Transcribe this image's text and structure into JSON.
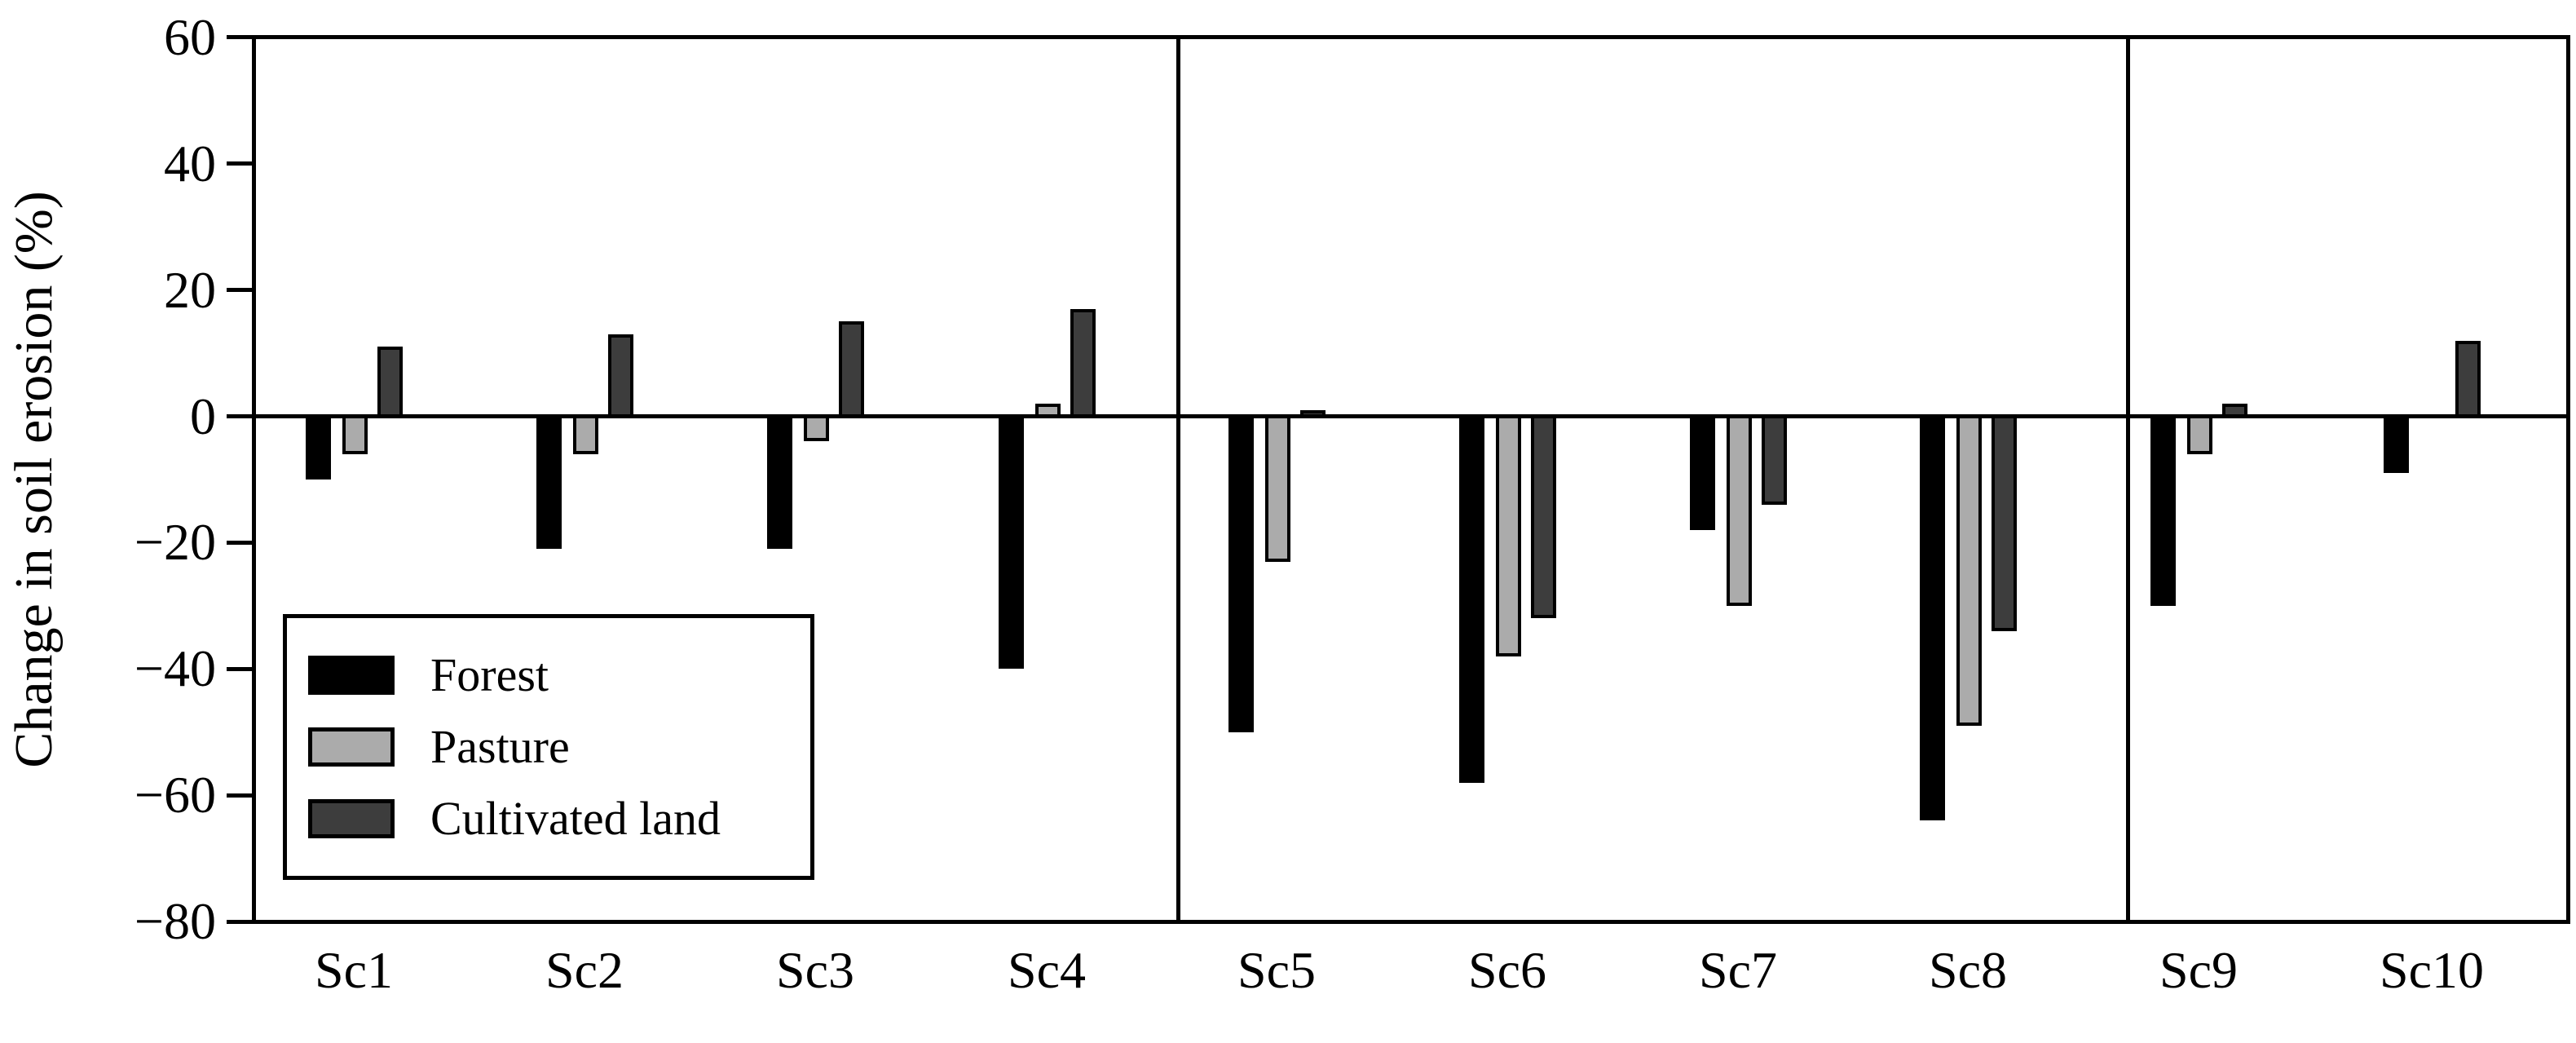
{
  "figure": {
    "y_axis": {
      "label": "Change in soil erosion (%)",
      "tick_labels": [
        "60",
        "40",
        "20",
        "0",
        "−20",
        "−40",
        "−60",
        "−80"
      ]
    },
    "x_axis": {
      "labels": [
        "Sc1",
        "Sc2",
        "Sc3",
        "Sc4",
        "Sc5",
        "Sc6",
        "Sc7",
        "Sc8",
        "Sc9",
        "Sc10"
      ]
    },
    "legend": {
      "items": [
        {
          "label": "Forest",
          "color": "#000000"
        },
        {
          "label": "Pasture",
          "color": "#ababab"
        },
        {
          "label": "Cultivated land",
          "color": "#3d3d3d"
        }
      ]
    }
  },
  "chart_data": {
    "type": "bar",
    "title": "",
    "xlabel": "",
    "ylabel": "Change in soil erosion (%)",
    "categories": [
      "Sc1",
      "Sc2",
      "Sc3",
      "Sc4",
      "Sc5",
      "Sc6",
      "Sc7",
      "Sc8",
      "Sc9",
      "Sc10"
    ],
    "series": [
      {
        "name": "Forest",
        "color": "#000000",
        "values": [
          -10,
          -21,
          -21,
          -40,
          -50,
          -58,
          -18,
          -64,
          -30,
          -9
        ]
      },
      {
        "name": "Pasture",
        "color": "#ababab",
        "values": [
          -6,
          -6,
          -4,
          2,
          -23,
          -38,
          -30,
          -49,
          -6,
          0
        ]
      },
      {
        "name": "Cultivated land",
        "color": "#3d3d3d",
        "values": [
          11,
          13,
          15,
          17,
          1,
          -32,
          -14,
          -34,
          2,
          12
        ]
      }
    ],
    "ylim": [
      -80,
      60
    ],
    "yticks": [
      60,
      40,
      20,
      0,
      -20,
      -40,
      -60,
      -80
    ],
    "grid": false,
    "legend_position": "lower-left",
    "panel_groups": [
      [
        "Sc1",
        "Sc2",
        "Sc3",
        "Sc4"
      ],
      [
        "Sc5",
        "Sc6",
        "Sc7",
        "Sc8"
      ],
      [
        "Sc9",
        "Sc10"
      ]
    ],
    "panel_divider_after": [
      "Sc4",
      "Sc8"
    ]
  }
}
